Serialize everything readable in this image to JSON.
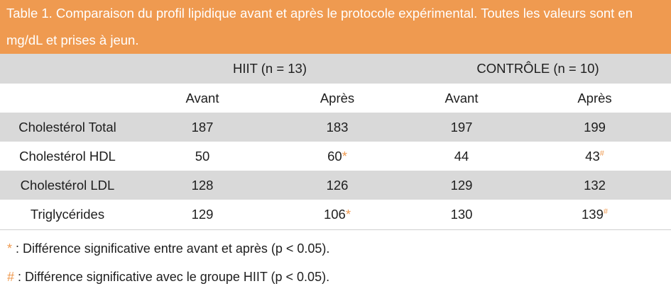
{
  "caption": "Table 1. Comparaison du profil lipidique avant et après le protocole expérimental. Toutes les valeurs sont en mg/dL et prises à jeun.",
  "groups": {
    "hiit": "HIIT (n = 13)",
    "controle": "CONTRÔLE (n = 10)"
  },
  "subheaders": {
    "hiit_avant": "Avant",
    "hiit_apres": "Après",
    "ctrl_avant": "Avant",
    "ctrl_apres": "Après"
  },
  "rows": [
    {
      "label": "Cholestérol Total",
      "hiit_avant": "187",
      "hiit_apres": "183",
      "ctrl_avant": "197",
      "ctrl_apres": "199"
    },
    {
      "label": "Cholestérol HDL",
      "hiit_avant": "50",
      "hiit_apres": "60",
      "hiit_apres_mark": "*",
      "ctrl_avant": "44",
      "ctrl_apres": "43",
      "ctrl_apres_mark": "#"
    },
    {
      "label": "Cholestérol LDL",
      "hiit_avant": "128",
      "hiit_apres": "126",
      "ctrl_avant": "129",
      "ctrl_apres": "132"
    },
    {
      "label": "Triglycérides",
      "hiit_avant": "129",
      "hiit_apres": "106",
      "hiit_apres_mark": "*",
      "ctrl_avant": "130",
      "ctrl_apres": "139",
      "ctrl_apres_mark": "#"
    }
  ],
  "notes": [
    {
      "symbol": "*",
      "text": " : Différence significative entre avant et après (p < 0.05)."
    },
    {
      "symbol": "#",
      "text": " : Différence significative avec le groupe HIIT (p < 0.05)."
    }
  ],
  "colors": {
    "accent": "#ef9a50",
    "row_shade": "#d9d9d9",
    "text": "#1e1e1e"
  }
}
